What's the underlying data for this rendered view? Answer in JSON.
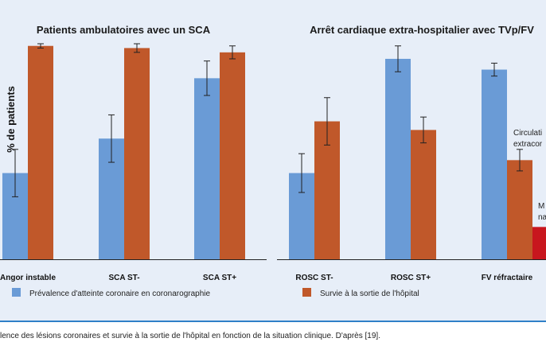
{
  "chart_data": [
    {
      "type": "bar",
      "title": "Patients ambulatoires avec un SCA",
      "ylabel": "% de patients",
      "categories": [
        "Angor instable",
        "SCA ST-",
        "SCA ST+"
      ],
      "ylim": [
        0,
        100
      ],
      "series": [
        {
          "name": "Prévalence d'atteinte coronaire en coronarographie",
          "color": "#6a9bd6",
          "values": [
            40,
            56,
            84
          ],
          "err": [
            11,
            11,
            8
          ]
        },
        {
          "name": "Survie à la sortie de l'hôpital",
          "color": "#c0582a",
          "values": [
            99,
            98,
            96
          ],
          "err": [
            1,
            2,
            3
          ]
        }
      ]
    },
    {
      "type": "bar",
      "title": "Arrêt cardiaque extra-hospitalier avec TVp/FV",
      "categories": [
        "ROSC ST-",
        "ROSC ST+",
        "FV réfractaire"
      ],
      "ylim": [
        0,
        100
      ],
      "series": [
        {
          "name": "Prévalence d'atteinte coronaire en coronarographie",
          "color": "#6a9bd6",
          "values": [
            40,
            93,
            88
          ],
          "err": [
            9,
            6,
            3
          ]
        },
        {
          "name": "Survie à la sortie de l'hôpital",
          "color": "#c0582a",
          "values": [
            64,
            60,
            46
          ],
          "err": [
            11,
            6,
            5
          ]
        }
      ],
      "extra_bar": {
        "category": "FV réfractaire",
        "value": 15,
        "color": "#c8161e"
      },
      "annotations": [
        "Circulati",
        "extracor",
        "M",
        "na"
      ]
    }
  ],
  "legend": [
    "Prévalence d'atteinte coronaire en coronarographie",
    "Survie à la sortie de l'hôpital"
  ],
  "caption": "lence des lésions coronaires et survie à la sortie de l'hôpital en fonction de la situation clinique. D'après [19]."
}
